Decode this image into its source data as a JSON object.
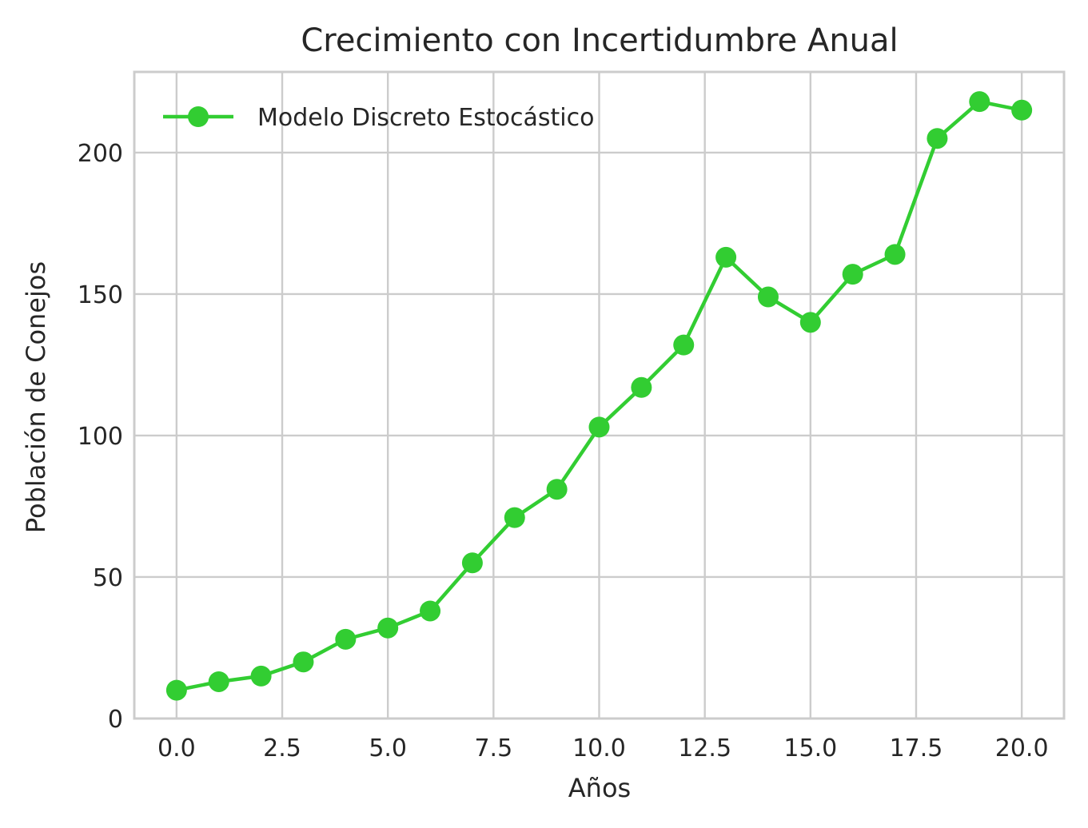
{
  "chart_data": {
    "type": "line",
    "title": "Crecimiento con Incertidumbre Anual",
    "xlabel": "Años",
    "ylabel": "Población de Conejos",
    "xlim": [
      -1.0,
      21.0
    ],
    "ylim": [
      0,
      228.5
    ],
    "xticks": [
      0.0,
      2.5,
      5.0,
      7.5,
      10.0,
      12.5,
      15.0,
      17.5,
      20.0
    ],
    "xtick_labels": [
      "0.0",
      "2.5",
      "5.0",
      "7.5",
      "10.0",
      "12.5",
      "15.0",
      "17.5",
      "20.0"
    ],
    "yticks": [
      0,
      50,
      100,
      150,
      200
    ],
    "ytick_labels": [
      "0",
      "50",
      "100",
      "150",
      "200"
    ],
    "grid": true,
    "legend_position": "top-left",
    "series": [
      {
        "name": "Modelo Discreto Estocástico",
        "color": "#32cd32",
        "marker": "circle",
        "x": [
          0,
          1,
          2,
          3,
          4,
          5,
          6,
          7,
          8,
          9,
          10,
          11,
          12,
          13,
          14,
          15,
          16,
          17,
          18,
          19,
          20
        ],
        "y": [
          10,
          13,
          15,
          20,
          28,
          32,
          38,
          55,
          71,
          81,
          103,
          117,
          132,
          163,
          149,
          140,
          157,
          164,
          205,
          218,
          215
        ]
      }
    ]
  }
}
